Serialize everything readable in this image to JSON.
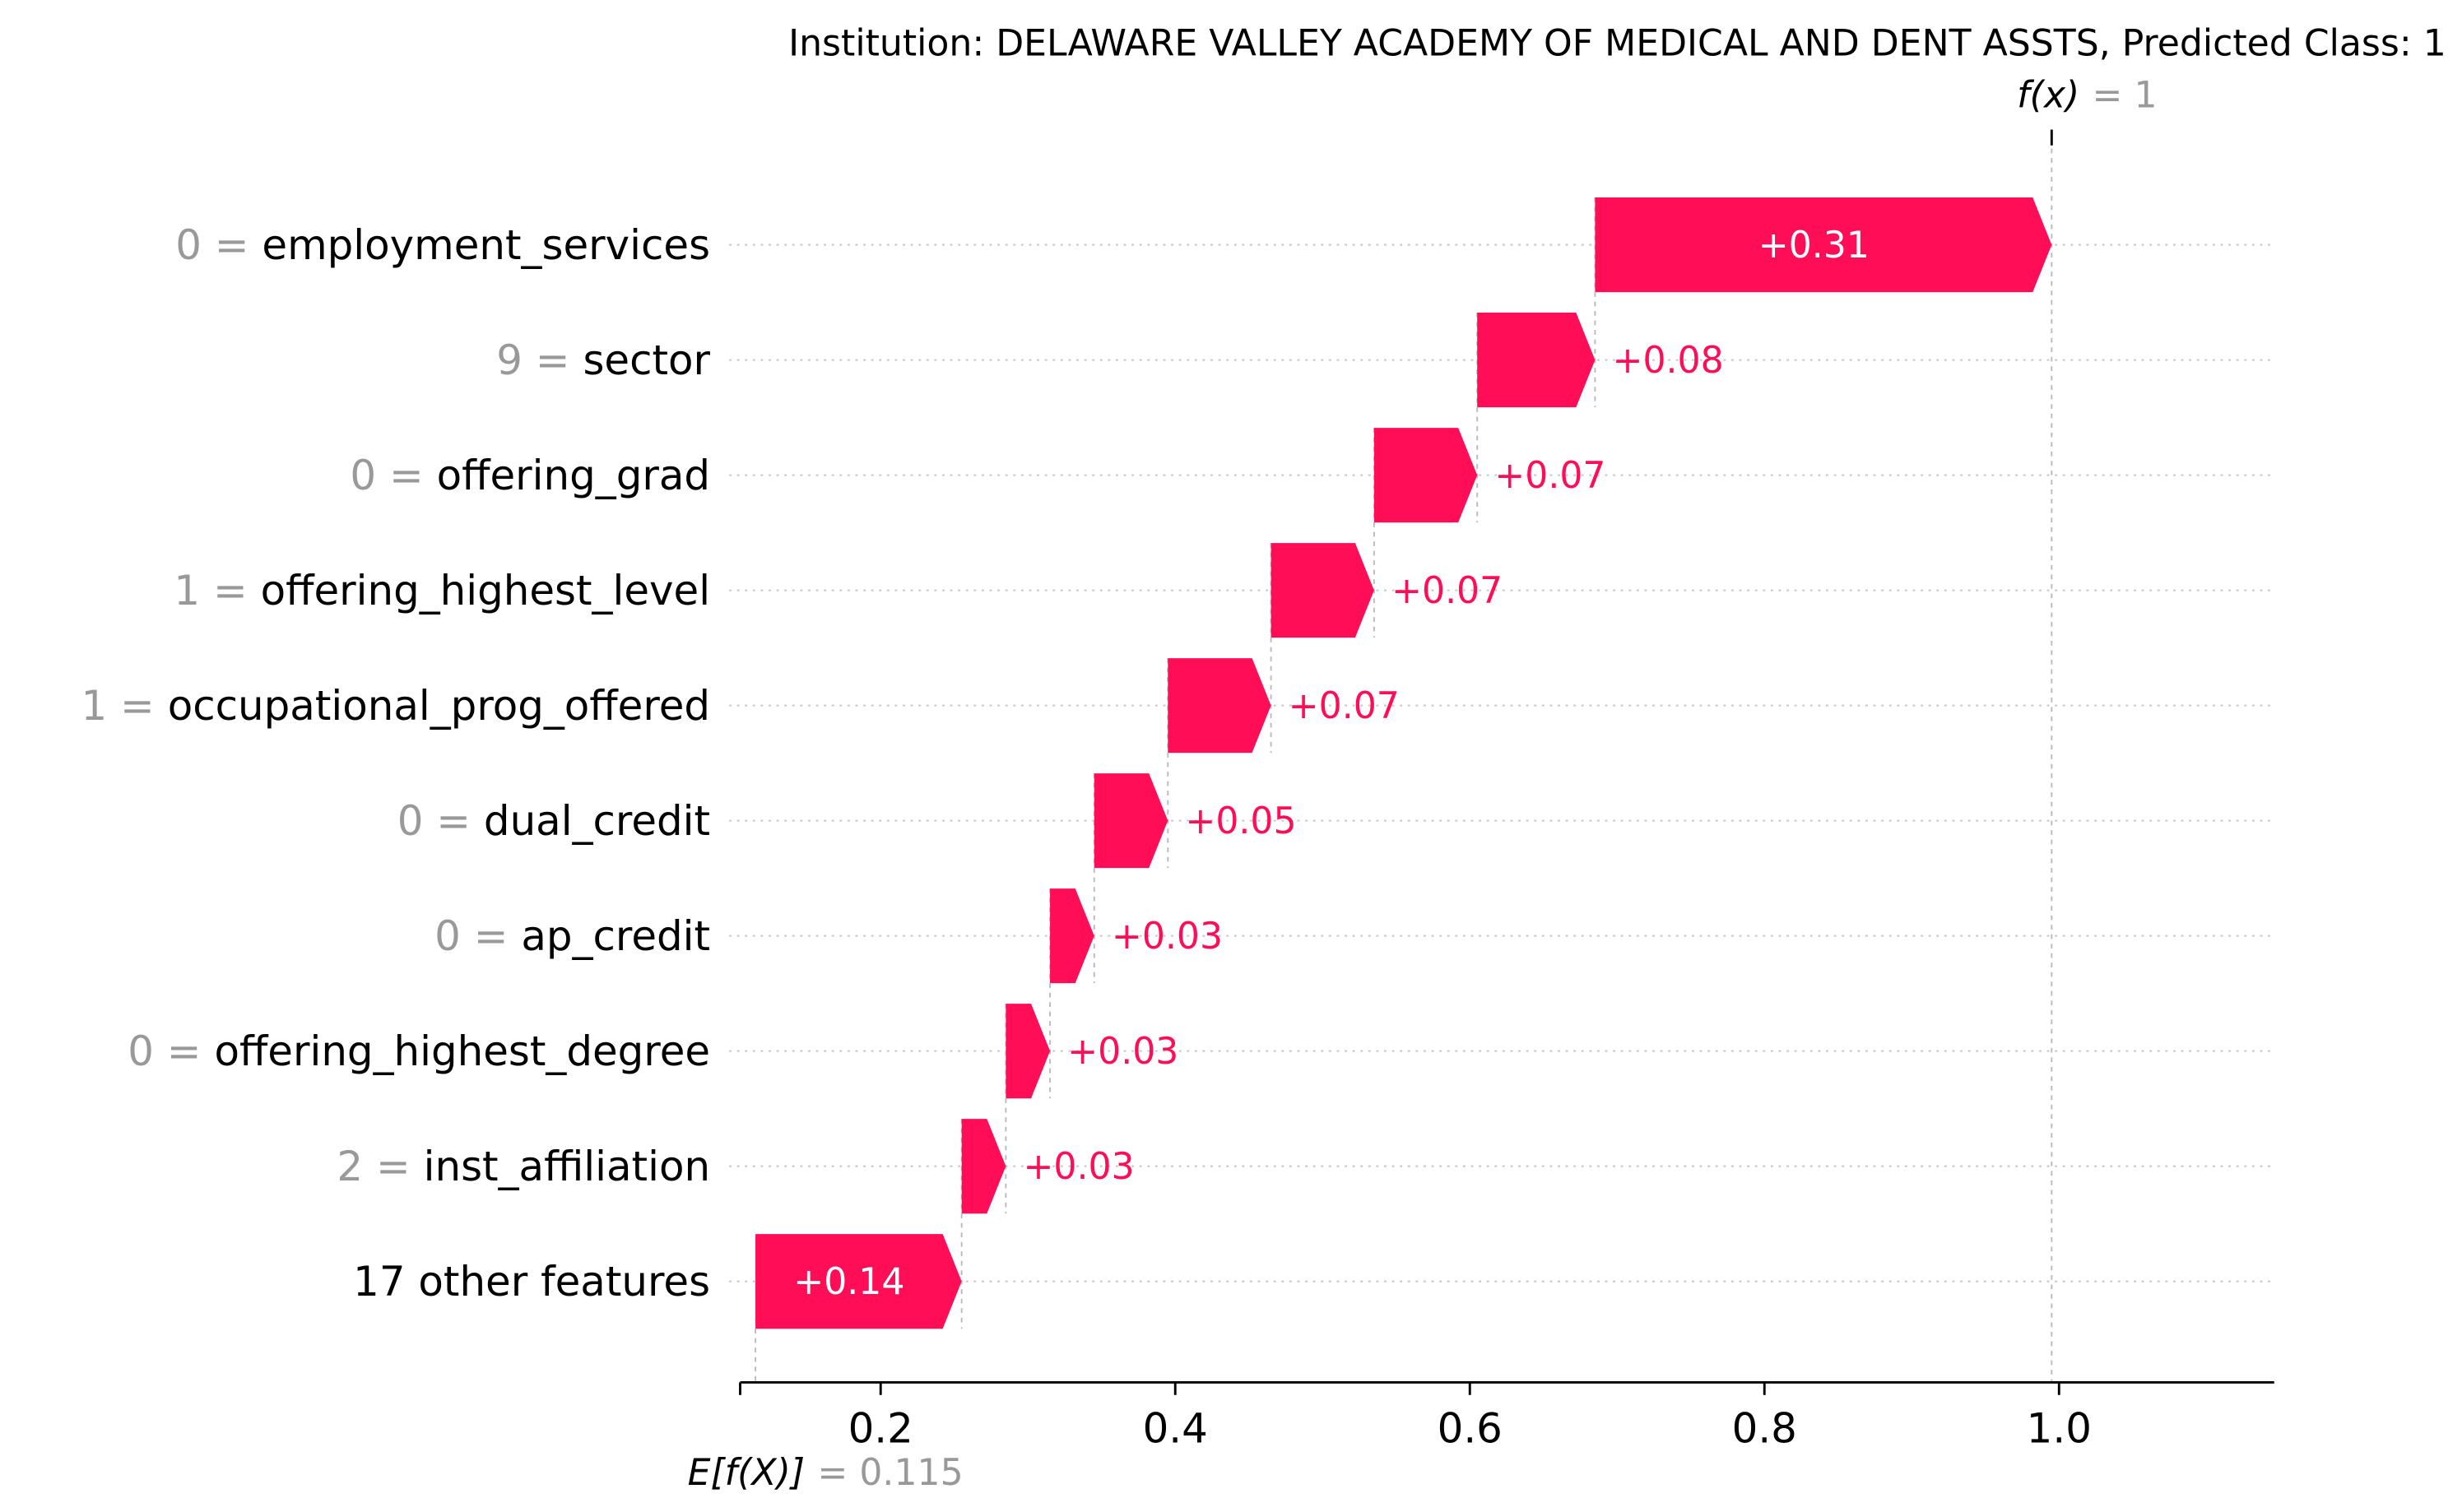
{
  "chart_data": {
    "type": "waterfall",
    "title": "Institution: DELAWARE VALLEY ACADEMY OF MEDICAL AND DENT ASSTS, Predicted Class: 1",
    "base_value": 0.115,
    "base_label": "E[f(X)]",
    "base_value_text": "= 0.115",
    "output_value": 1,
    "output_label": "f(x)",
    "output_value_text": "= 1",
    "xlim": [
      0.095,
      1.145
    ],
    "x_ticks": [
      0.2,
      0.4,
      0.6,
      0.8,
      1.0
    ],
    "x_tick_labels": [
      "0.2",
      "0.4",
      "0.6",
      "0.8",
      "1.0"
    ],
    "colors": {
      "positive": "#ff0d57",
      "axis": "#000000",
      "label_value": "#999999",
      "grid": "#cccccc"
    },
    "features": [
      {
        "value": "0",
        "name": "employment_services",
        "shap": 0.31,
        "label": "+0.31"
      },
      {
        "value": "9",
        "name": "sector",
        "shap": 0.08,
        "label": "+0.08"
      },
      {
        "value": "0",
        "name": "offering_grad",
        "shap": 0.07,
        "label": "+0.07"
      },
      {
        "value": "1",
        "name": "offering_highest_level",
        "shap": 0.07,
        "label": "+0.07"
      },
      {
        "value": "1",
        "name": "occupational_prog_offered",
        "shap": 0.07,
        "label": "+0.07"
      },
      {
        "value": "0",
        "name": "dual_credit",
        "shap": 0.05,
        "label": "+0.05"
      },
      {
        "value": "0",
        "name": "ap_credit",
        "shap": 0.03,
        "label": "+0.03"
      },
      {
        "value": "0",
        "name": "offering_highest_degree",
        "shap": 0.03,
        "label": "+0.03"
      },
      {
        "value": "2",
        "name": "inst_affiliation",
        "shap": 0.03,
        "label": "+0.03"
      },
      {
        "value": "",
        "name": "17 other features",
        "shap": 0.14,
        "label": "+0.14"
      }
    ]
  }
}
